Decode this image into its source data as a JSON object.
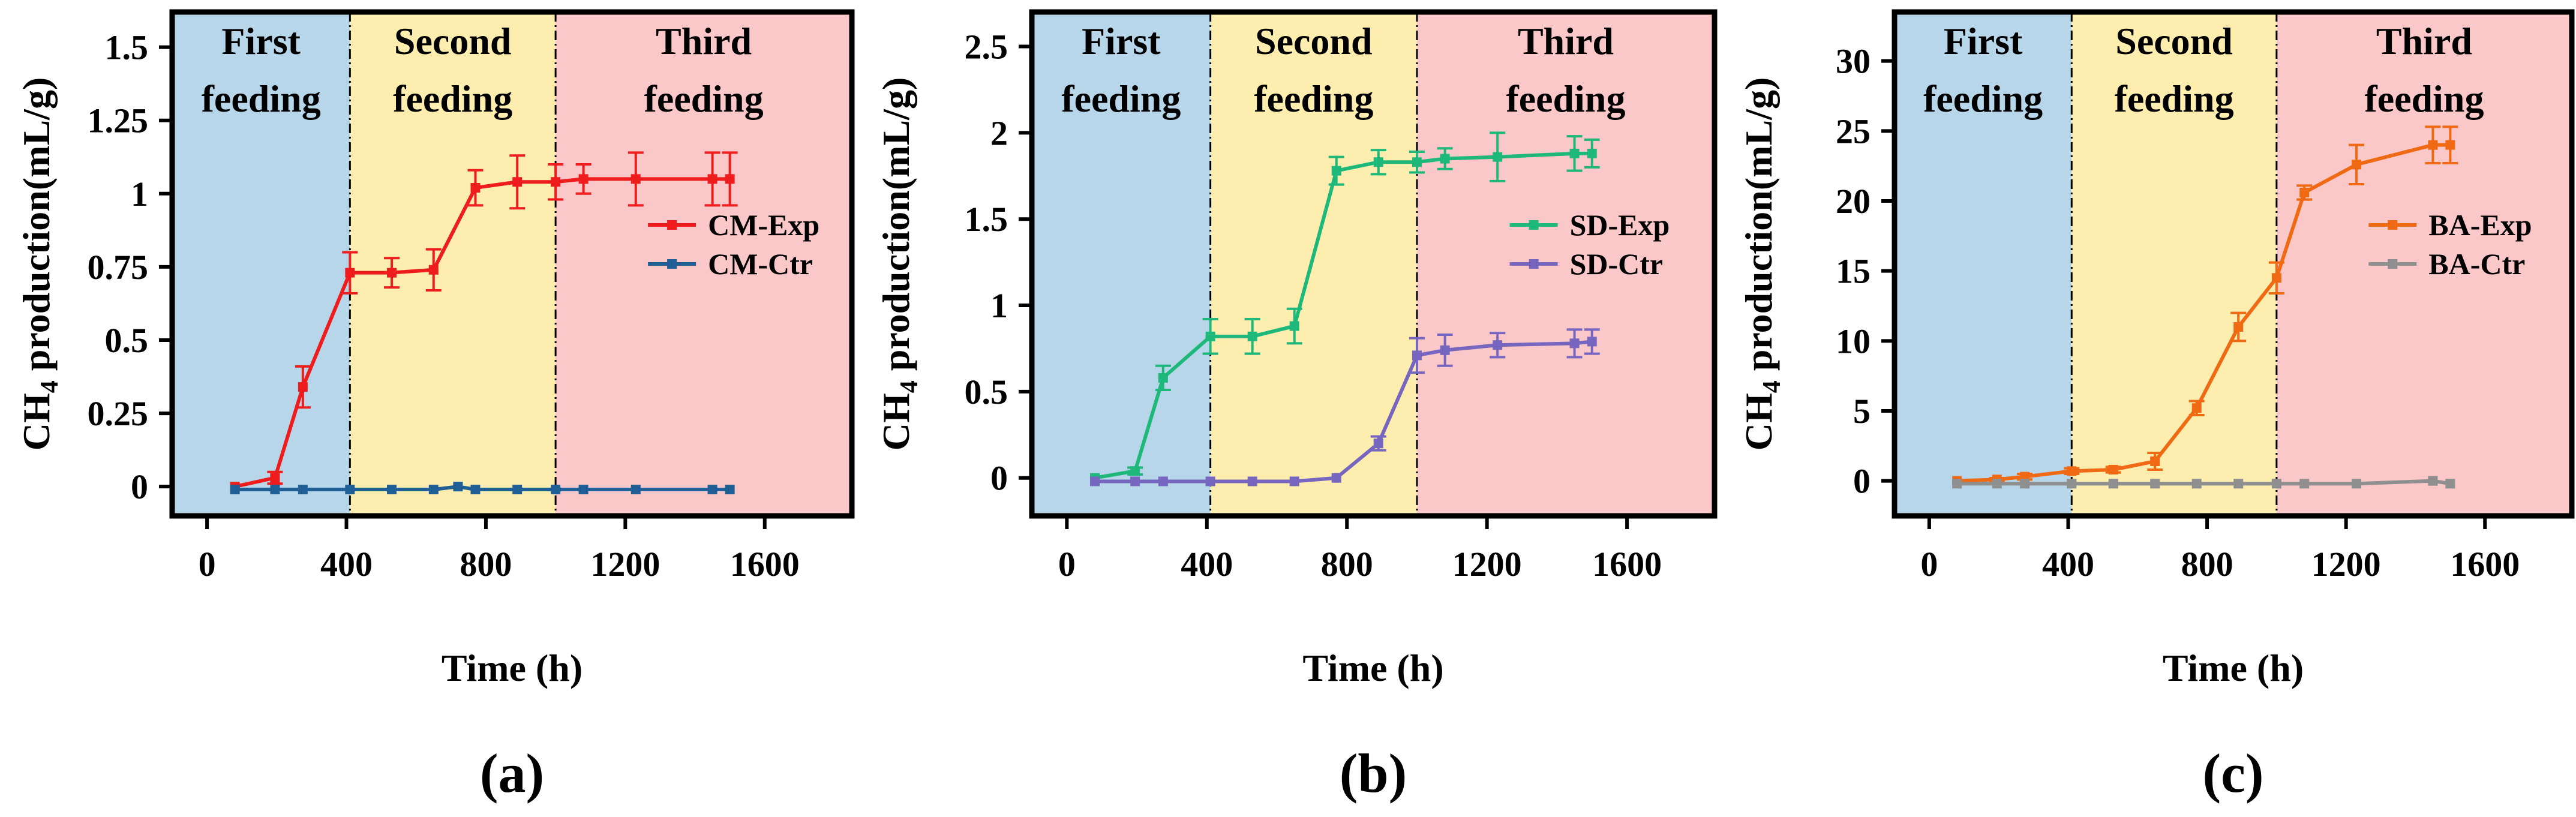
{
  "chart_data": [
    {
      "type": "line",
      "panel_label": "(a)",
      "xlabel": "Time (h)",
      "ylabel_main": "CH",
      "ylabel_sub": "4",
      "ylabel_rest": " production(mL/g)",
      "xlim": [
        -100,
        1850
      ],
      "ylim": [
        -0.1,
        1.62
      ],
      "xticks": [
        0,
        400,
        800,
        1200,
        1600
      ],
      "xtick_labels": [
        "0",
        "400",
        "800",
        "1200",
        "1600"
      ],
      "yticks": [
        0,
        0.25,
        0.5,
        0.75,
        1,
        1.25,
        1.5
      ],
      "ytick_labels": [
        "0",
        "0.25",
        "0.5",
        "0.75",
        "1",
        "1.25",
        "1.5"
      ],
      "regions": [
        {
          "x0": -100,
          "x1": 410,
          "color": "#b8d6ea",
          "label_lines": [
            "First",
            "feeding"
          ]
        },
        {
          "x0": 410,
          "x1": 1000,
          "color": "#fdeeb0",
          "label_lines": [
            "Second",
            "feeding"
          ]
        },
        {
          "x0": 1000,
          "x1": 1850,
          "color": "#fac8c8",
          "label_lines": [
            "Third",
            "feeding"
          ]
        }
      ],
      "boundaries": [
        410,
        1000
      ],
      "legend": {
        "position": "middle-right"
      },
      "series": [
        {
          "name": "CM-Exp",
          "color": "#ee1c1c",
          "x": [
            80,
            195,
            275,
            410,
            530,
            650,
            770,
            890,
            1000,
            1080,
            1230,
            1450,
            1500
          ],
          "y": [
            0.0,
            0.03,
            0.34,
            0.73,
            0.73,
            0.74,
            1.02,
            1.04,
            1.04,
            1.05,
            1.05,
            1.05,
            1.05
          ],
          "err": [
            0,
            0.02,
            0.07,
            0.07,
            0.05,
            0.07,
            0.06,
            0.09,
            0.06,
            0.05,
            0.09,
            0.09,
            0.09
          ]
        },
        {
          "name": "CM-Ctr",
          "color": "#1f5f96",
          "x": [
            80,
            195,
            275,
            410,
            530,
            650,
            720,
            770,
            890,
            1000,
            1080,
            1230,
            1450,
            1500
          ],
          "y": [
            -0.01,
            -0.01,
            -0.01,
            -0.01,
            -0.01,
            -0.01,
            0.0,
            -0.01,
            -0.01,
            -0.01,
            -0.01,
            -0.01,
            -0.01,
            -0.01
          ],
          "err": [
            0,
            0,
            0,
            0,
            0,
            0,
            0,
            0,
            0,
            0,
            0,
            0,
            0,
            0
          ]
        }
      ]
    },
    {
      "type": "line",
      "panel_label": "(b)",
      "xlabel": "Time (h)",
      "ylabel_main": "CH",
      "ylabel_sub": "4",
      "ylabel_rest": " production(mL/g)",
      "xlim": [
        -100,
        1850
      ],
      "ylim": [
        -0.22,
        2.7
      ],
      "xticks": [
        0,
        400,
        800,
        1200,
        1600
      ],
      "xtick_labels": [
        "0",
        "400",
        "800",
        "1200",
        "1600"
      ],
      "yticks": [
        0,
        0.5,
        1,
        1.5,
        2,
        2.5
      ],
      "ytick_labels": [
        "0",
        "0.5",
        "1",
        "1.5",
        "2",
        "2.5"
      ],
      "regions": [
        {
          "x0": -100,
          "x1": 410,
          "color": "#b8d6ea",
          "label_lines": [
            "First",
            "feeding"
          ]
        },
        {
          "x0": 410,
          "x1": 1000,
          "color": "#fdeeb0",
          "label_lines": [
            "Second",
            "feeding"
          ]
        },
        {
          "x0": 1000,
          "x1": 1850,
          "color": "#fac8c8",
          "label_lines": [
            "Third",
            "feeding"
          ]
        }
      ],
      "boundaries": [
        410,
        1000
      ],
      "legend": {
        "position": "middle-right"
      },
      "series": [
        {
          "name": "SD-Exp",
          "color": "#1db87a",
          "x": [
            80,
            195,
            275,
            410,
            530,
            650,
            770,
            890,
            1000,
            1080,
            1230,
            1450,
            1500
          ],
          "y": [
            0.0,
            0.04,
            0.58,
            0.82,
            0.82,
            0.88,
            1.78,
            1.83,
            1.83,
            1.85,
            1.86,
            1.88,
            1.88
          ],
          "err": [
            0,
            0.02,
            0.07,
            0.1,
            0.1,
            0.1,
            0.08,
            0.07,
            0.06,
            0.06,
            0.14,
            0.1,
            0.08
          ]
        },
        {
          "name": "SD-Ctr",
          "color": "#7766c0",
          "x": [
            80,
            195,
            275,
            410,
            530,
            650,
            770,
            890,
            1000,
            1080,
            1230,
            1450,
            1500
          ],
          "y": [
            -0.02,
            -0.02,
            -0.02,
            -0.02,
            -0.02,
            -0.02,
            0.0,
            0.2,
            0.71,
            0.74,
            0.77,
            0.78,
            0.79
          ],
          "err": [
            0,
            0,
            0,
            0,
            0,
            0,
            0,
            0.04,
            0.1,
            0.09,
            0.07,
            0.08,
            0.07
          ]
        }
      ]
    },
    {
      "type": "line",
      "panel_label": "(c)",
      "xlabel": "Time (h)",
      "ylabel_main": "CH",
      "ylabel_sub": "4",
      "ylabel_rest": " production(mL/g)",
      "xlim": [
        -100,
        1850
      ],
      "ylim": [
        -2.5,
        33.5
      ],
      "xticks": [
        0,
        400,
        800,
        1200,
        1600
      ],
      "xtick_labels": [
        "0",
        "400",
        "800",
        "1200",
        "1600"
      ],
      "yticks": [
        0,
        5,
        10,
        15,
        20,
        25,
        30
      ],
      "ytick_labels": [
        "0",
        "5",
        "10",
        "15",
        "20",
        "25",
        "30"
      ],
      "regions": [
        {
          "x0": -100,
          "x1": 410,
          "color": "#b8d6ea",
          "label_lines": [
            "First",
            "feeding"
          ]
        },
        {
          "x0": 410,
          "x1": 1000,
          "color": "#fdeeb0",
          "label_lines": [
            "Second",
            "feeding"
          ]
        },
        {
          "x0": 1000,
          "x1": 1850,
          "color": "#fac8c8",
          "label_lines": [
            "Third",
            "feeding"
          ]
        }
      ],
      "boundaries": [
        410,
        1000
      ],
      "legend": {
        "position": "middle-right"
      },
      "series": [
        {
          "name": "BA-Exp",
          "color": "#ef6a13",
          "x": [
            80,
            195,
            275,
            410,
            530,
            650,
            770,
            890,
            1000,
            1080,
            1230,
            1450,
            1500
          ],
          "y": [
            0.0,
            0.1,
            0.3,
            0.7,
            0.8,
            1.4,
            5.2,
            11.0,
            14.5,
            20.6,
            22.6,
            24.0,
            24.0
          ],
          "err": [
            0,
            0.1,
            0.2,
            0.2,
            0.2,
            0.6,
            0.5,
            1.0,
            1.1,
            0.5,
            1.4,
            1.3,
            1.3
          ]
        },
        {
          "name": "BA-Ctr",
          "color": "#8f8f8f",
          "x": [
            80,
            195,
            275,
            410,
            530,
            650,
            770,
            890,
            1000,
            1080,
            1230,
            1450,
            1500
          ],
          "y": [
            -0.2,
            -0.2,
            -0.2,
            -0.2,
            -0.2,
            -0.2,
            -0.2,
            -0.2,
            -0.2,
            -0.2,
            -0.2,
            0.0,
            -0.2
          ],
          "err": [
            0,
            0,
            0,
            0,
            0,
            0,
            0,
            0,
            0,
            0,
            0,
            0,
            0
          ]
        }
      ]
    }
  ]
}
